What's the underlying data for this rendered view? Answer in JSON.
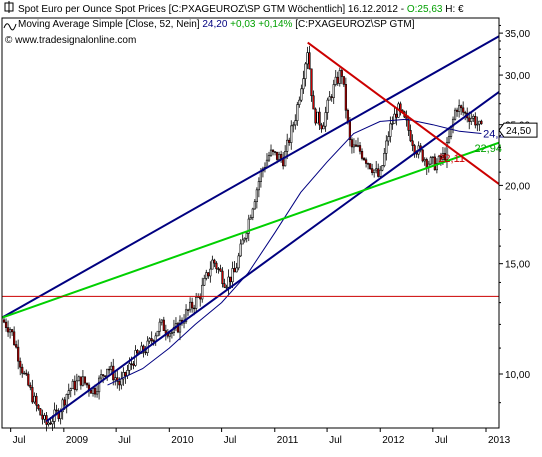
{
  "header": {
    "line1_prefix": "Spot Euro per Ounce Spot Prices [C:PXAGEUROZ\\SP GTM  Wöchentlich] 16.12.2012 - ",
    "line1_value": "O:25,63",
    "line1_suffix": " H: €",
    "line2_prefix": "Moving Average Simple [Close, 52, Nein] ",
    "line2_value": "24,20",
    "line2_change": " +0,03 +0,14% ",
    "line2_suffix": "[C:PXAGEUROZ\\SP GTM]",
    "watermark": "© www.tradesignalonline.com"
  },
  "chart_data": {
    "type": "candlestick",
    "title": "",
    "xlabel": "",
    "ylabel": "",
    "y_scale": "log",
    "ylim": [
      8.2,
      37
    ],
    "xlim": [
      "2008-06-01",
      "2013-02-15"
    ],
    "y_ticks": [
      "10,00",
      "15,00",
      "20,00",
      "25,00",
      "30,00",
      "35,00"
    ],
    "y_tick_values": [
      10,
      15,
      20,
      25,
      30,
      35
    ],
    "x_ticks": [
      {
        "label": "Jul",
        "date": "2008-07-01"
      },
      {
        "label": "2009",
        "date": "2009-01-01"
      },
      {
        "label": "Jul",
        "date": "2009-07-01"
      },
      {
        "label": "2010",
        "date": "2010-01-01"
      },
      {
        "label": "Jul",
        "date": "2010-07-01"
      },
      {
        "label": "2011",
        "date": "2011-01-01"
      },
      {
        "label": "Jul",
        "date": "2011-07-01"
      },
      {
        "label": "2012",
        "date": "2012-01-01"
      },
      {
        "label": "Jul",
        "date": "2012-07-01"
      },
      {
        "label": "2013",
        "date": "2013-01-01"
      }
    ],
    "price_path": [
      [
        "2008-06-01",
        12.2
      ],
      [
        "2008-07-01",
        11.8
      ],
      [
        "2008-08-15",
        10.0
      ],
      [
        "2008-10-01",
        8.8
      ],
      [
        "2008-11-01",
        8.3
      ],
      [
        "2008-12-15",
        8.7
      ],
      [
        "2009-01-15",
        9.4
      ],
      [
        "2009-03-01",
        9.8
      ],
      [
        "2009-04-15",
        9.4
      ],
      [
        "2009-06-01",
        10.3
      ],
      [
        "2009-07-15",
        9.6
      ],
      [
        "2009-09-01",
        10.6
      ],
      [
        "2009-10-15",
        11.0
      ],
      [
        "2009-12-01",
        12.0
      ],
      [
        "2010-01-15",
        11.6
      ],
      [
        "2010-03-01",
        12.5
      ],
      [
        "2010-04-15",
        13.3
      ],
      [
        "2010-06-01",
        15.2
      ],
      [
        "2010-07-15",
        14.0
      ],
      [
        "2010-08-15",
        14.5
      ],
      [
        "2010-10-01",
        17.5
      ],
      [
        "2010-11-15",
        21.0
      ],
      [
        "2010-12-15",
        22.5
      ],
      [
        "2011-02-01",
        22.0
      ],
      [
        "2011-03-15",
        26.0
      ],
      [
        "2011-04-25",
        33.2
      ],
      [
        "2011-05-15",
        26.0
      ],
      [
        "2011-06-15",
        25.0
      ],
      [
        "2011-07-15",
        28.0
      ],
      [
        "2011-08-20",
        30.5
      ],
      [
        "2011-09-20",
        23.0
      ],
      [
        "2011-10-20",
        22.8
      ],
      [
        "2011-12-01",
        21.5
      ],
      [
        "2011-12-30",
        20.5
      ],
      [
        "2012-02-01",
        24.5
      ],
      [
        "2012-03-01",
        26.5
      ],
      [
        "2012-04-01",
        25.0
      ],
      [
        "2012-05-01",
        23.0
      ],
      [
        "2012-06-15",
        21.8
      ],
      [
        "2012-07-15",
        21.6
      ],
      [
        "2012-08-15",
        22.5
      ],
      [
        "2012-09-20",
        26.8
      ],
      [
        "2012-10-20",
        26.0
      ],
      [
        "2012-11-20",
        25.6
      ],
      [
        "2012-12-16",
        24.5
      ]
    ],
    "series": [
      {
        "name": "Moving Average Simple [Close, 52, Nein]",
        "color": "#000080",
        "points": [
          [
            "2009-06-01",
            9.6
          ],
          [
            "2009-10-01",
            10.2
          ],
          [
            "2010-01-01",
            11.0
          ],
          [
            "2010-04-01",
            12.0
          ],
          [
            "2010-07-01",
            13.0
          ],
          [
            "2010-10-01",
            14.5
          ],
          [
            "2011-01-01",
            16.8
          ],
          [
            "2011-04-01",
            19.5
          ],
          [
            "2011-07-01",
            21.8
          ],
          [
            "2011-10-01",
            24.2
          ],
          [
            "2012-01-01",
            25.3
          ],
          [
            "2012-04-01",
            25.5
          ],
          [
            "2012-07-01",
            25.0
          ],
          [
            "2012-10-01",
            24.4
          ],
          [
            "2012-12-16",
            24.2
          ]
        ]
      }
    ],
    "trendlines": [
      {
        "role": "upper-channel",
        "color": "#000080",
        "from": [
          "2008-06-01",
          12.3
        ],
        "to": [
          "2013-02-15",
          34.6
        ]
      },
      {
        "role": "lower-channel",
        "color": "#000080",
        "from": [
          "2008-11-01",
          8.4
        ],
        "to": [
          "2013-02-15",
          28.2
        ]
      },
      {
        "role": "support-green",
        "color": "#00d000",
        "from": [
          "2008-06-01",
          12.3
        ],
        "to": [
          "2013-02-15",
          23.4
        ]
      },
      {
        "role": "resistance-red",
        "color": "#cc0000",
        "from": [
          "2011-04-25",
          33.8
        ],
        "to": [
          "2013-02-15",
          20.1
        ]
      },
      {
        "role": "horizontal-red",
        "color": "#cc0000",
        "from": [
          "2008-06-01",
          13.3
        ],
        "to": [
          "2013-02-15",
          13.3
        ]
      }
    ],
    "annotations": [
      {
        "text": "24,20",
        "date": "2012-12-22",
        "value": 24.2,
        "color": "#000080"
      },
      {
        "text": "22,94",
        "date": "2012-11-22",
        "value": 22.94,
        "color": "#00a000"
      },
      {
        "text": "22,11",
        "date": "2012-07-20",
        "value": 22.11,
        "color": "#cc0000"
      }
    ],
    "last_price_label": {
      "text": "24,50",
      "value": 24.5
    },
    "colors": {
      "up": "#ffffff",
      "down": "#cc0000",
      "wick": "#000000"
    }
  }
}
